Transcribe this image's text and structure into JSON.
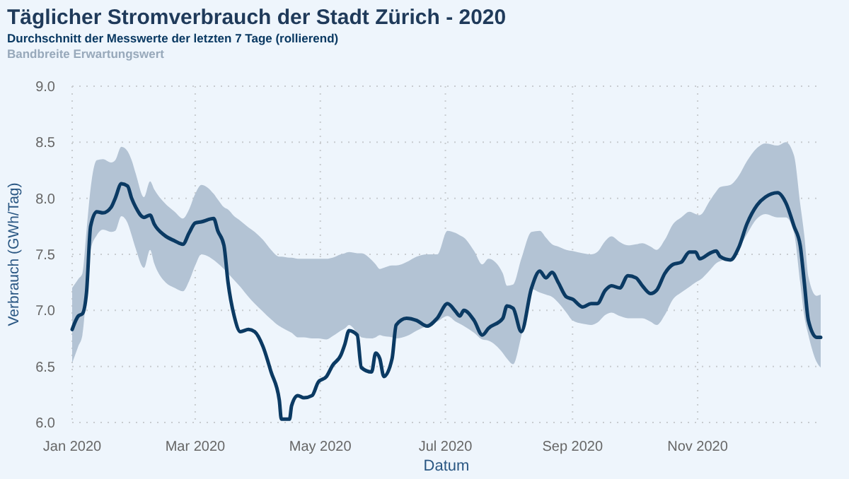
{
  "chart_data": {
    "type": "line",
    "title": "Täglicher Stromverbrauch der Stadt Zürich - 2020",
    "xlabel": "Datum",
    "ylabel": "Verbrauch (GWh/Tag)",
    "annotations": [
      "Bandbreite Erwartungswert"
    ],
    "xlim": [
      "2020-01-01",
      "2020-12-31"
    ],
    "ylim": [
      6,
      9
    ],
    "xticks": [
      {
        "value": "2020-01-01",
        "label": "Jan 2020"
      },
      {
        "value": "2020-03-01",
        "label": "Mar 2020"
      },
      {
        "value": "2020-05-01",
        "label": "May 2020"
      },
      {
        "value": "2020-07-01",
        "label": "Jul 2020"
      },
      {
        "value": "2020-09-01",
        "label": "Sep 2020"
      },
      {
        "value": "2020-11-01",
        "label": "Nov 2020"
      }
    ],
    "yticks": [
      {
        "value": 6,
        "label": "6.0"
      },
      {
        "value": 6.5,
        "label": "6.5"
      },
      {
        "value": 7,
        "label": "7.0"
      },
      {
        "value": 7.5,
        "label": "7.5"
      },
      {
        "value": 8,
        "label": "8.0"
      },
      {
        "value": 8.5,
        "label": "8.5"
      },
      {
        "value": 9,
        "label": "9.0"
      }
    ],
    "grid": true,
    "legend": "top",
    "line_style": "solid",
    "series": [
      {
        "name": "Durchschnitt der Messwerte der letzten 7 Tage (rollierend)",
        "color": "#0b3a63",
        "x": [
          "2020-01-01",
          "2020-01-04",
          "2020-01-06",
          "2020-01-08",
          "2020-01-10",
          "2020-01-13",
          "2020-01-16",
          "2020-01-20",
          "2020-01-22",
          "2020-01-25",
          "2020-01-28",
          "2020-01-30",
          "2020-02-01",
          "2020-02-05",
          "2020-02-08",
          "2020-02-10",
          "2020-02-15",
          "2020-02-20",
          "2020-02-24",
          "2020-02-27",
          "2020-03-01",
          "2020-03-04",
          "2020-03-10",
          "2020-03-12",
          "2020-03-15",
          "2020-03-17",
          "2020-03-20",
          "2020-03-23",
          "2020-03-27",
          "2020-03-30",
          "2020-04-03",
          "2020-04-07",
          "2020-04-11",
          "2020-04-12",
          "2020-04-16",
          "2020-04-17",
          "2020-04-20",
          "2020-04-23",
          "2020-04-27",
          "2020-04-30",
          "2020-05-04",
          "2020-05-07",
          "2020-05-11",
          "2020-05-13",
          "2020-05-15",
          "2020-05-19",
          "2020-05-21",
          "2020-05-26",
          "2020-05-28",
          "2020-05-30",
          "2020-06-01",
          "2020-06-05",
          "2020-06-07",
          "2020-06-12",
          "2020-06-17",
          "2020-06-22",
          "2020-06-27",
          "2020-07-02",
          "2020-07-06",
          "2020-07-08",
          "2020-07-10",
          "2020-07-15",
          "2020-07-19",
          "2020-07-22",
          "2020-07-29",
          "2020-07-31",
          "2020-08-03",
          "2020-08-07",
          "2020-08-12",
          "2020-08-16",
          "2020-08-19",
          "2020-08-22",
          "2020-08-25",
          "2020-08-29",
          "2020-09-01",
          "2020-09-06",
          "2020-09-10",
          "2020-09-13",
          "2020-09-17",
          "2020-09-20",
          "2020-09-24",
          "2020-09-28",
          "2020-10-02",
          "2020-10-05",
          "2020-10-09",
          "2020-10-12",
          "2020-10-16",
          "2020-10-20",
          "2020-10-24",
          "2020-10-28",
          "2020-10-31",
          "2020-11-02",
          "2020-11-07",
          "2020-11-10",
          "2020-11-12",
          "2020-11-17",
          "2020-11-21",
          "2020-11-25",
          "2020-11-30",
          "2020-12-04",
          "2020-12-10",
          "2020-12-14",
          "2020-12-18",
          "2020-12-21",
          "2020-12-23",
          "2020-12-25",
          "2020-12-29",
          "2020-12-31"
        ],
        "values": [
          6.83,
          6.95,
          6.97,
          7.16,
          7.75,
          7.88,
          7.87,
          7.92,
          8,
          8.13,
          8.11,
          8,
          7.92,
          7.83,
          7.85,
          7.77,
          7.67,
          7.62,
          7.59,
          7.69,
          7.78,
          7.79,
          7.82,
          7.71,
          7.58,
          7.25,
          6.95,
          6.81,
          6.83,
          6.81,
          6.68,
          6.45,
          6.2,
          6.03,
          6.03,
          6.15,
          6.24,
          6.22,
          6.24,
          6.36,
          6.41,
          6.51,
          6.6,
          6.7,
          6.82,
          6.78,
          6.49,
          6.45,
          6.62,
          6.57,
          6.41,
          6.57,
          6.87,
          6.93,
          6.91,
          6.86,
          6.93,
          7.06,
          6.99,
          6.95,
          7,
          6.91,
          6.78,
          6.84,
          6.93,
          7.04,
          7.02,
          6.81,
          7.2,
          7.35,
          7.29,
          7.34,
          7.25,
          7.12,
          7.1,
          7.03,
          7.06,
          7.06,
          7.18,
          7.22,
          7.2,
          7.31,
          7.29,
          7.22,
          7.15,
          7.18,
          7.33,
          7.41,
          7.43,
          7.52,
          7.52,
          7.46,
          7.51,
          7.53,
          7.48,
          7.45,
          7.56,
          7.77,
          7.94,
          8.01,
          8.05,
          7.96,
          7.75,
          7.58,
          7.25,
          6.91,
          6.76,
          6.76
        ],
        "lower": [
          6.53,
          6.68,
          6.78,
          7.16,
          7.54,
          7.67,
          7.72,
          7.7,
          7.71,
          7.84,
          7.78,
          7.67,
          7.55,
          7.38,
          7.54,
          7.42,
          7.26,
          7.2,
          7.17,
          7.26,
          7.4,
          7.5,
          7.45,
          7.42,
          7.37,
          7.33,
          7.27,
          7.21,
          7.12,
          7.06,
          6.99,
          6.92,
          6.86,
          6.85,
          6.81,
          6.8,
          6.76,
          6.76,
          6.75,
          6.75,
          6.74,
          6.77,
          6.82,
          6.84,
          6.87,
          6.8,
          6.76,
          6.75,
          6.76,
          6.78,
          6.77,
          6.76,
          6.75,
          6.77,
          6.82,
          6.86,
          6.9,
          6.95,
          6.9,
          6.88,
          6.86,
          6.8,
          6.74,
          6.73,
          6.62,
          6.57,
          6.52,
          6.77,
          7.19,
          7.16,
          7.14,
          7.12,
          7.07,
          6.98,
          6.91,
          6.88,
          6.87,
          6.89,
          6.96,
          6.98,
          6.95,
          6.93,
          6.93,
          6.93,
          6.9,
          6.87,
          6.96,
          7.1,
          7.16,
          7.21,
          7.25,
          7.27,
          7.36,
          7.42,
          7.44,
          7.46,
          7.55,
          7.68,
          7.82,
          7.86,
          7.83,
          7.83,
          7.69,
          7.25,
          6.95,
          6.78,
          6.54,
          6.49
        ],
        "upper": [
          7.2,
          7.28,
          7.33,
          7.71,
          8.09,
          8.34,
          8.35,
          8.32,
          8.34,
          8.46,
          8.42,
          8.34,
          8.22,
          8.01,
          8.15,
          8.08,
          7.96,
          7.88,
          7.82,
          7.9,
          8.04,
          8.12,
          8.04,
          7.99,
          7.92,
          7.9,
          7.84,
          7.8,
          7.74,
          7.7,
          7.63,
          7.54,
          7.48,
          7.48,
          7.47,
          7.47,
          7.46,
          7.46,
          7.46,
          7.46,
          7.46,
          7.47,
          7.5,
          7.51,
          7.52,
          7.51,
          7.51,
          7.45,
          7.41,
          7.37,
          7.38,
          7.4,
          7.4,
          7.43,
          7.48,
          7.5,
          7.5,
          7.71,
          7.69,
          7.67,
          7.65,
          7.53,
          7.41,
          7.46,
          7.33,
          7.22,
          7.23,
          7.46,
          7.7,
          7.71,
          7.65,
          7.59,
          7.57,
          7.54,
          7.53,
          7.51,
          7.5,
          7.52,
          7.62,
          7.66,
          7.61,
          7.58,
          7.59,
          7.6,
          7.57,
          7.54,
          7.63,
          7.77,
          7.83,
          7.88,
          7.86,
          7.85,
          7.98,
          8.06,
          8.1,
          8.12,
          8.2,
          8.33,
          8.45,
          8.49,
          8.47,
          8.5,
          8.38,
          7.95,
          7.67,
          7.3,
          7.13,
          7.14
        ]
      }
    ]
  }
}
